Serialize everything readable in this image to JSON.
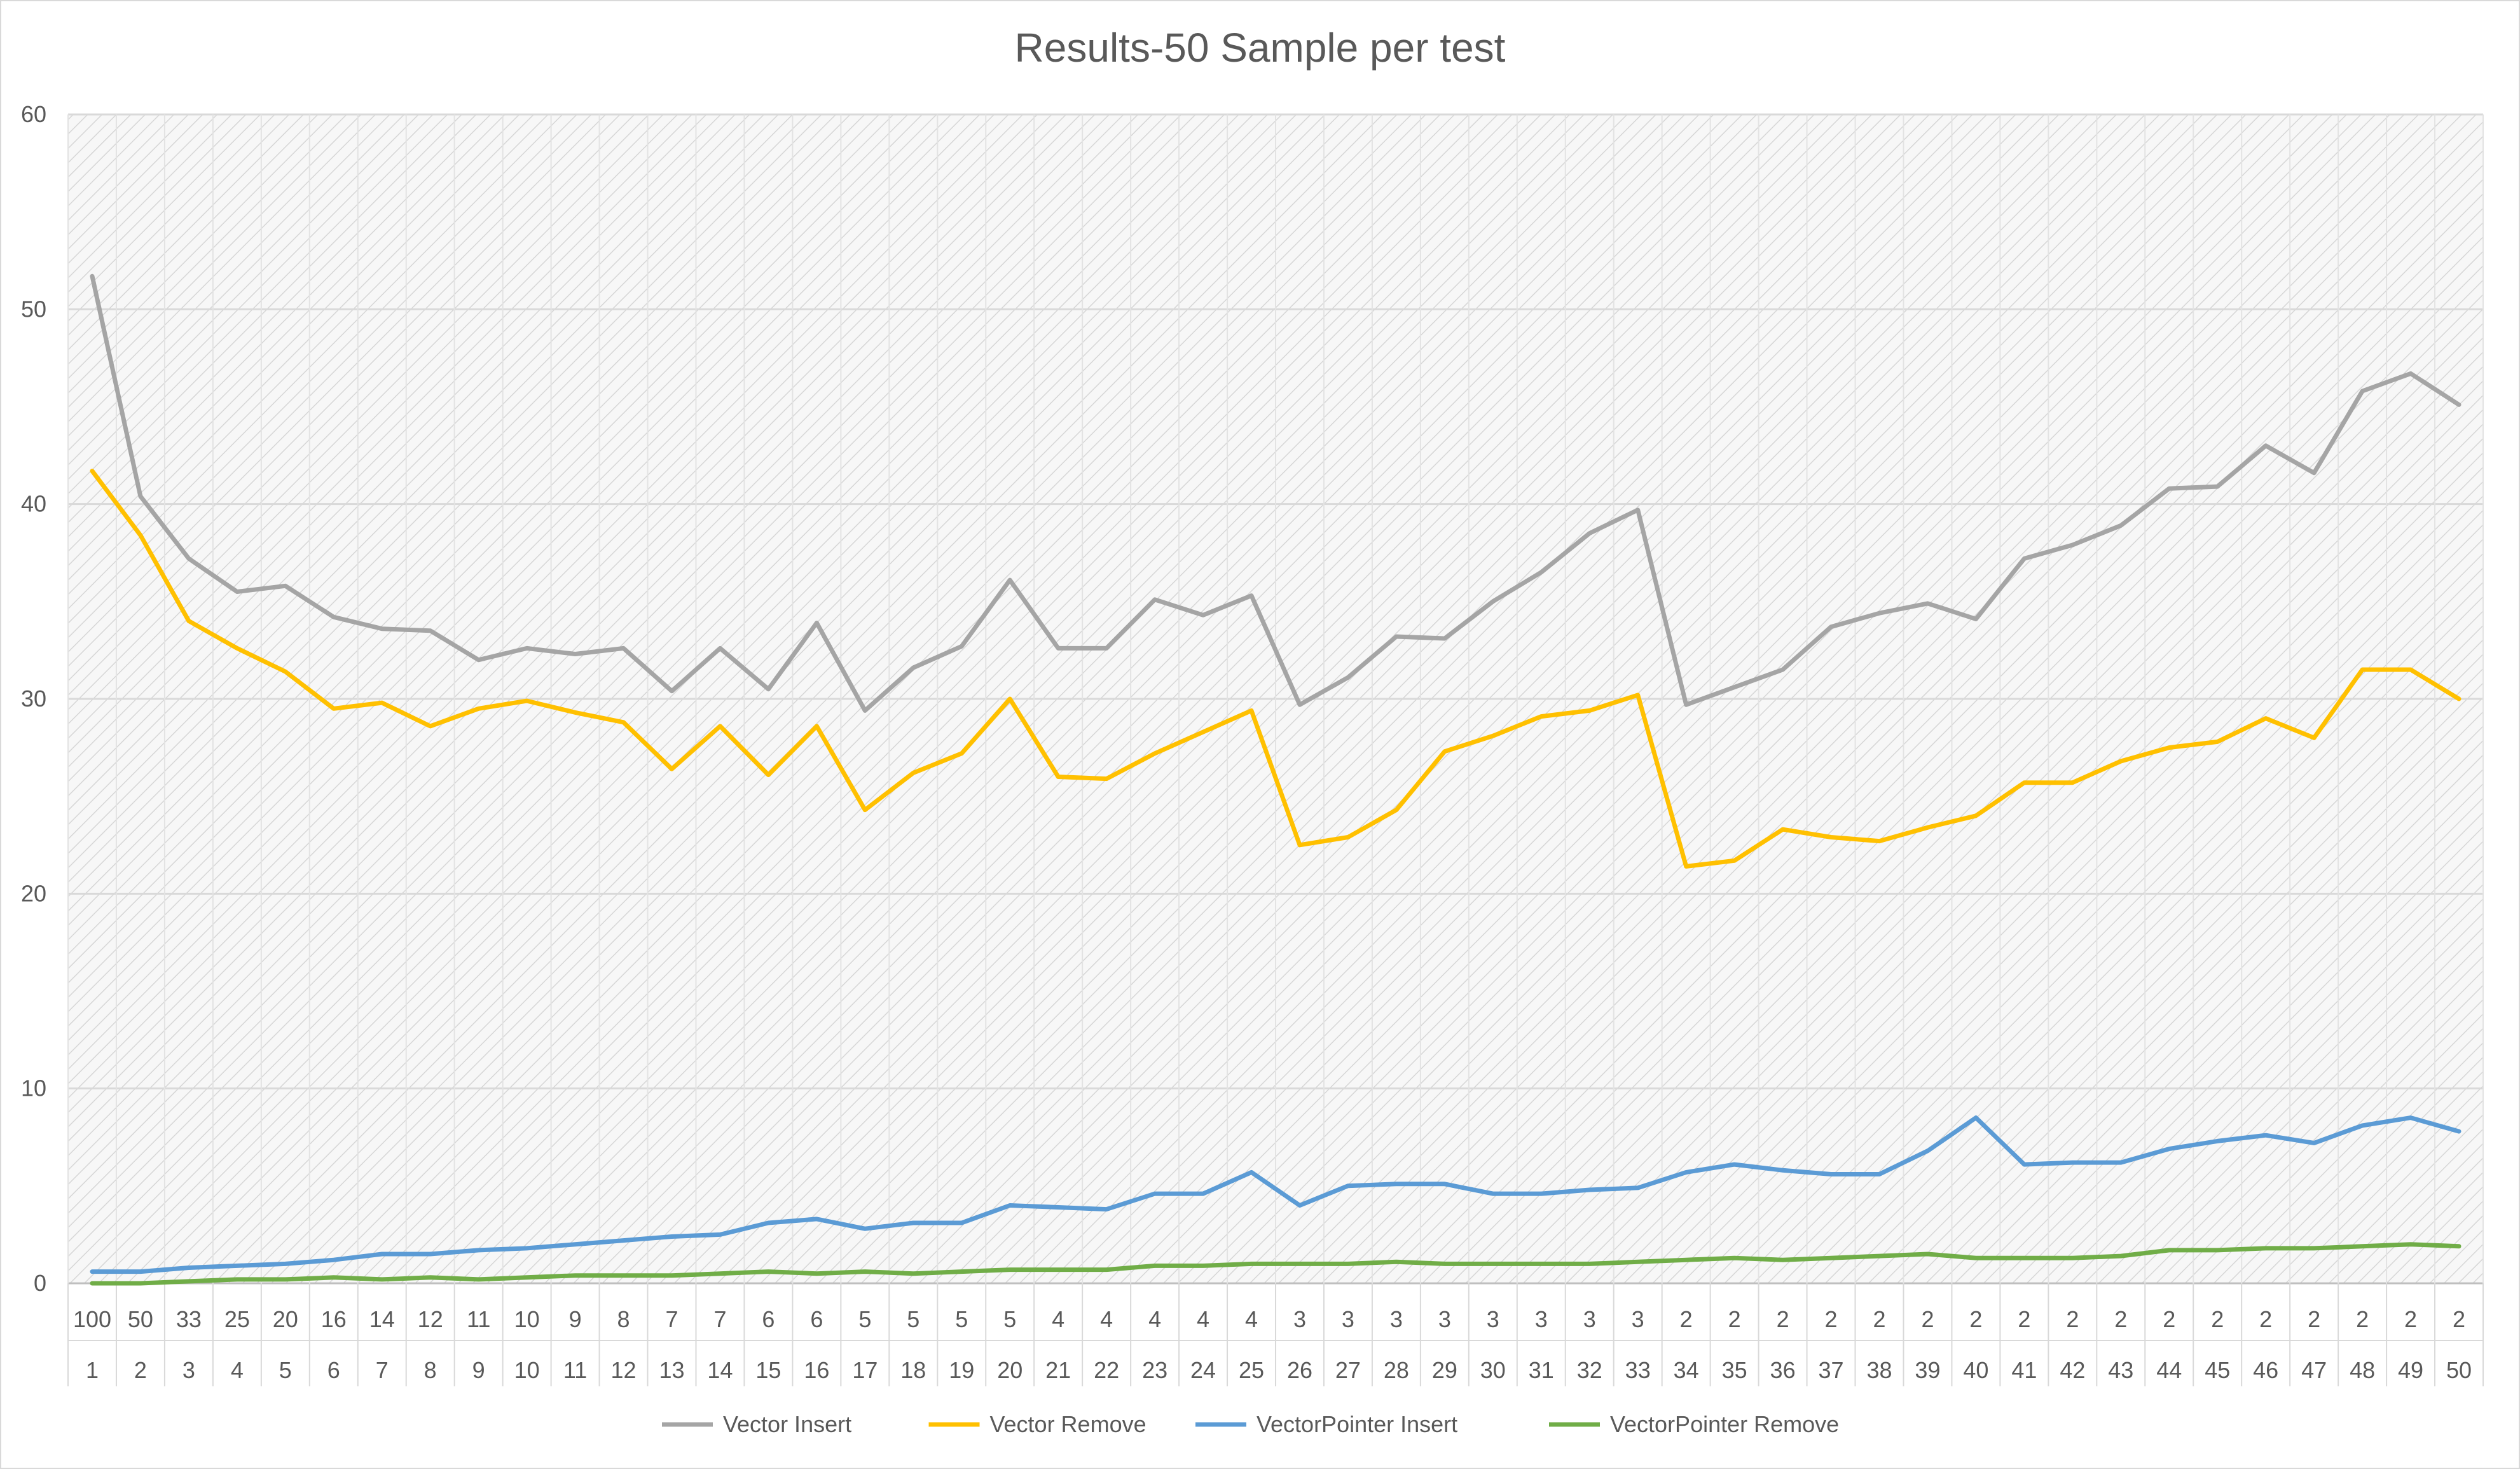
{
  "chart_data": {
    "type": "line",
    "title": "Results-50 Sample per test",
    "xlabel": "",
    "ylabel": "",
    "ylim": [
      0,
      60
    ],
    "yticks": [
      0,
      10,
      20,
      30,
      40,
      50,
      60
    ],
    "grid": true,
    "legend_position": "bottom",
    "categories_level1": [
      "100",
      "50",
      "33",
      "25",
      "20",
      "16",
      "14",
      "12",
      "11",
      "10",
      "9",
      "8",
      "7",
      "7",
      "6",
      "6",
      "5",
      "5",
      "5",
      "5",
      "4",
      "4",
      "4",
      "4",
      "4",
      "3",
      "3",
      "3",
      "3",
      "3",
      "3",
      "3",
      "3",
      "2",
      "2",
      "2",
      "2",
      "2",
      "2",
      "2",
      "2",
      "2",
      "2",
      "2",
      "2",
      "2",
      "2",
      "2",
      "2",
      "2"
    ],
    "categories_level2": [
      "1",
      "2",
      "3",
      "4",
      "5",
      "6",
      "7",
      "8",
      "9",
      "10",
      "11",
      "12",
      "13",
      "14",
      "15",
      "16",
      "17",
      "18",
      "19",
      "20",
      "21",
      "22",
      "23",
      "24",
      "25",
      "26",
      "27",
      "28",
      "29",
      "30",
      "31",
      "32",
      "33",
      "34",
      "35",
      "36",
      "37",
      "38",
      "39",
      "40",
      "41",
      "42",
      "43",
      "44",
      "45",
      "46",
      "47",
      "48",
      "49",
      "50"
    ],
    "series": [
      {
        "name": "Vector Insert",
        "color": "#a5a5a5",
        "values": [
          51.7,
          40.4,
          37.2,
          35.5,
          35.8,
          34.2,
          33.6,
          33.5,
          32.0,
          32.6,
          32.3,
          32.6,
          30.4,
          32.6,
          30.5,
          33.9,
          29.4,
          31.6,
          32.7,
          36.1,
          32.6,
          32.6,
          35.1,
          34.3,
          35.3,
          29.7,
          31.1,
          33.2,
          33.1,
          35.0,
          36.5,
          38.5,
          39.7,
          29.7,
          30.6,
          31.5,
          33.7,
          34.4,
          34.9,
          34.1,
          37.2,
          37.9,
          38.9,
          40.8,
          40.9,
          43.0,
          41.6,
          45.8,
          46.7,
          45.1
        ]
      },
      {
        "name": "Vector Remove",
        "color": "#ffc000",
        "values": [
          41.7,
          38.4,
          34.0,
          32.6,
          31.4,
          29.5,
          29.8,
          28.6,
          29.5,
          29.9,
          29.3,
          28.8,
          26.4,
          28.6,
          26.1,
          28.6,
          24.3,
          26.2,
          27.2,
          30.0,
          26.0,
          25.9,
          27.2,
          28.3,
          29.4,
          22.5,
          22.9,
          24.3,
          27.3,
          28.1,
          29.1,
          29.4,
          30.2,
          21.4,
          21.7,
          23.3,
          22.9,
          22.7,
          23.4,
          24.0,
          25.7,
          25.7,
          26.8,
          27.5,
          27.8,
          29.0,
          28.0,
          31.5,
          31.5,
          30.0
        ]
      },
      {
        "name": "VectorPointer Insert",
        "color": "#5b9bd5",
        "values": [
          0.6,
          0.6,
          0.8,
          0.9,
          1.0,
          1.2,
          1.5,
          1.5,
          1.7,
          1.8,
          2.0,
          2.2,
          2.4,
          2.5,
          3.1,
          3.3,
          2.8,
          3.1,
          3.1,
          4.0,
          3.9,
          3.8,
          4.6,
          4.6,
          5.7,
          4.0,
          5.0,
          5.1,
          5.1,
          4.6,
          4.6,
          4.8,
          4.9,
          5.7,
          6.1,
          5.8,
          5.6,
          5.6,
          6.8,
          8.5,
          6.1,
          6.2,
          6.2,
          6.9,
          7.3,
          7.6,
          7.2,
          8.1,
          8.5,
          7.8
        ]
      },
      {
        "name": "VectorPointer Remove",
        "color": "#70ad47",
        "values": [
          0.0,
          0.0,
          0.1,
          0.2,
          0.2,
          0.3,
          0.2,
          0.3,
          0.2,
          0.3,
          0.4,
          0.4,
          0.4,
          0.5,
          0.6,
          0.5,
          0.6,
          0.5,
          0.6,
          0.7,
          0.7,
          0.7,
          0.9,
          0.9,
          1.0,
          1.0,
          1.0,
          1.1,
          1.0,
          1.0,
          1.0,
          1.0,
          1.1,
          1.2,
          1.3,
          1.2,
          1.3,
          1.4,
          1.5,
          1.3,
          1.3,
          1.3,
          1.4,
          1.7,
          1.7,
          1.8,
          1.8,
          1.9,
          2.0,
          1.9
        ]
      }
    ]
  }
}
